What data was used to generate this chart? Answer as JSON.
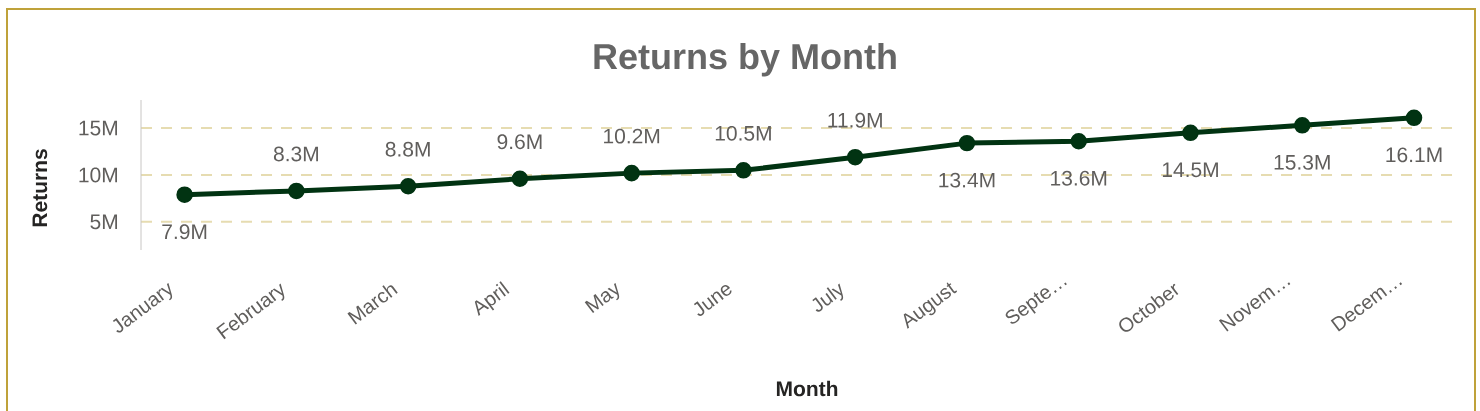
{
  "chart_data": {
    "type": "line",
    "title": "Returns by Month",
    "xlabel": "Month",
    "ylabel": "Returns",
    "categories": [
      "January",
      "February",
      "March",
      "April",
      "May",
      "June",
      "July",
      "August",
      "Septe…",
      "October",
      "Novem…",
      "Decem…"
    ],
    "series": [
      {
        "color": "#013312",
        "values": [
          7.9,
          8.3,
          8.8,
          9.6,
          10.2,
          10.5,
          11.9,
          13.4,
          13.6,
          14.5,
          15.3,
          16.1
        ],
        "value_labels": [
          "7.9M",
          "8.3M",
          "8.8M",
          "9.6M",
          "10.2M",
          "10.5M",
          "11.9M",
          "13.4M",
          "13.6M",
          "14.5M",
          "15.3M",
          "16.1M"
        ]
      }
    ],
    "ylim": [
      2,
      18
    ],
    "yticks": [
      {
        "value": 5,
        "label": "5M"
      },
      {
        "value": 10,
        "label": "10M"
      },
      {
        "value": 15,
        "label": "15M"
      }
    ],
    "grid": "y",
    "marker": "circle",
    "line_style": "solid"
  }
}
